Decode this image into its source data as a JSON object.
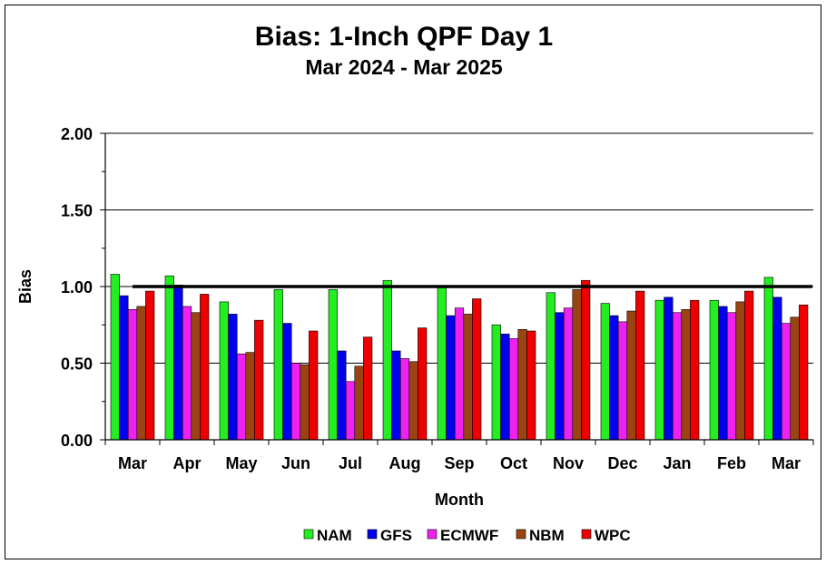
{
  "chart_data": {
    "type": "bar",
    "title": "Bias:  1-Inch QPF Day 1",
    "subtitle": "Mar 2024 - Mar 2025",
    "xlabel": "Month",
    "ylabel": "Bias",
    "ylim": [
      0,
      2
    ],
    "yticks": [
      "0.00",
      "0.50",
      "1.00",
      "1.50",
      "2.00"
    ],
    "grid": true,
    "reference_line": 1.0,
    "legend_position": "bottom",
    "categories": [
      "Mar",
      "Apr",
      "May",
      "Jun",
      "Jul",
      "Aug",
      "Sep",
      "Oct",
      "Nov",
      "Dec",
      "Jan",
      "Feb",
      "Mar"
    ],
    "series": [
      {
        "name": "NAM",
        "color": "#22ee22",
        "values": [
          1.08,
          1.07,
          0.9,
          0.98,
          0.98,
          1.04,
          1.0,
          0.75,
          0.96,
          0.89,
          0.91,
          0.91,
          1.06
        ]
      },
      {
        "name": "GFS",
        "color": "#0000ee",
        "values": [
          0.94,
          1.01,
          0.82,
          0.76,
          0.58,
          0.58,
          0.81,
          0.69,
          0.83,
          0.81,
          0.93,
          0.87,
          0.93
        ]
      },
      {
        "name": "ECMWF",
        "color": "#ee22ee",
        "values": [
          0.85,
          0.87,
          0.56,
          0.5,
          0.38,
          0.53,
          0.86,
          0.66,
          0.86,
          0.77,
          0.83,
          0.83,
          0.76
        ]
      },
      {
        "name": "NBM",
        "color": "#994411",
        "values": [
          0.87,
          0.83,
          0.57,
          0.49,
          0.48,
          0.51,
          0.82,
          0.72,
          0.98,
          0.84,
          0.85,
          0.9,
          0.8
        ]
      },
      {
        "name": "WPC",
        "color": "#ee0000",
        "values": [
          0.97,
          0.95,
          0.78,
          0.71,
          0.67,
          0.73,
          0.92,
          0.71,
          1.04,
          0.97,
          0.91,
          0.97,
          0.88
        ]
      }
    ]
  }
}
